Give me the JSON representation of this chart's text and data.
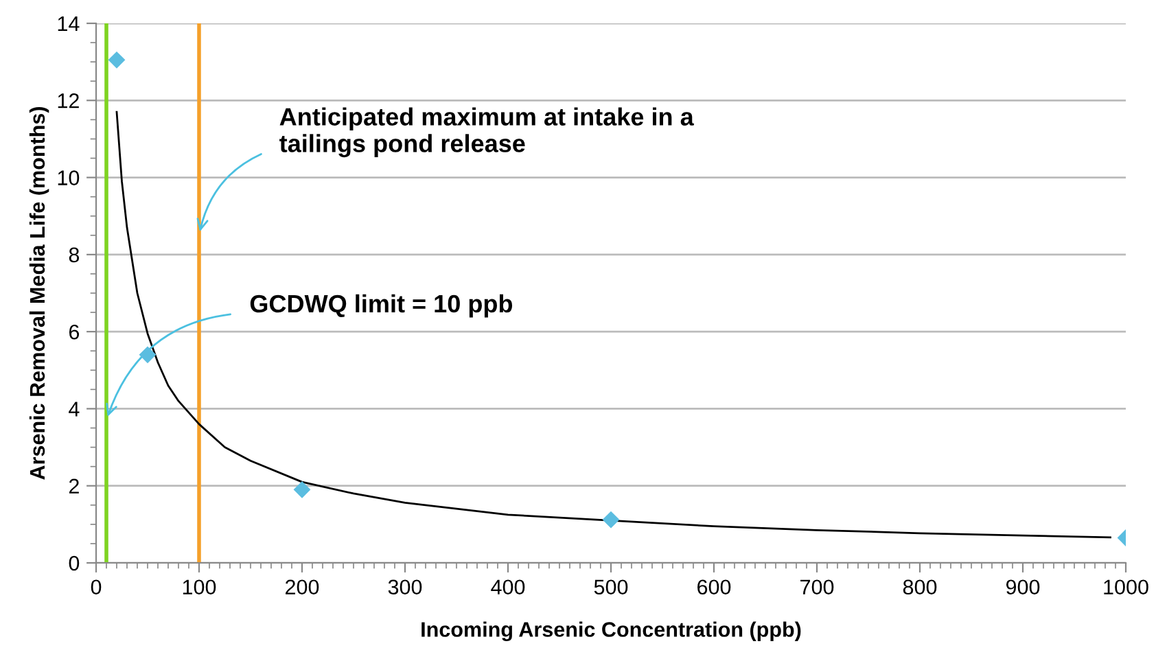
{
  "chart_data": {
    "type": "scatter",
    "xlabel": "Incoming Arsenic Concentration (ppb)",
    "ylabel": "Arsenic Removal Media Life (months)",
    "xlim": [
      0,
      1000
    ],
    "xticks": [
      0,
      100,
      200,
      300,
      400,
      500,
      600,
      700,
      800,
      900,
      1000
    ],
    "ylim": [
      0,
      14
    ],
    "yticks": [
      0,
      2,
      4,
      6,
      8,
      10,
      12,
      14
    ],
    "grid": "y",
    "legend": false,
    "series": [
      {
        "type": "scatter",
        "color": "#5bbde0",
        "marker": "diamond",
        "x": [
          20,
          50,
          200,
          500,
          1000
        ],
        "values": [
          13.05,
          5.4,
          1.9,
          1.12,
          0.65
        ]
      },
      {
        "type": "line",
        "color": "#000000",
        "marker": "none",
        "line_style": "solid",
        "x": [
          20,
          25,
          30,
          40,
          50,
          60,
          70,
          80,
          100,
          125,
          150,
          200,
          250,
          300,
          400,
          600,
          700,
          800,
          900,
          985
        ],
        "values": [
          11.7,
          9.9,
          8.7,
          7.0,
          5.95,
          5.2,
          4.6,
          4.2,
          3.6,
          3.0,
          2.65,
          2.1,
          1.8,
          1.56,
          1.25,
          0.95,
          0.85,
          0.77,
          0.71,
          0.66
        ]
      }
    ],
    "ref_lines": [
      {
        "axis": "x",
        "value": 10,
        "color": "#7ed321"
      },
      {
        "axis": "x",
        "value": 100,
        "color": "#f5a02a"
      }
    ],
    "annotations": [
      {
        "text": "Anticipated maximum at intake in a\ntailings pond release",
        "x": 100,
        "y": 8.5
      },
      {
        "text": "GCDWQ limit = 10 ppb",
        "x": 10,
        "y": 3.7
      }
    ]
  }
}
